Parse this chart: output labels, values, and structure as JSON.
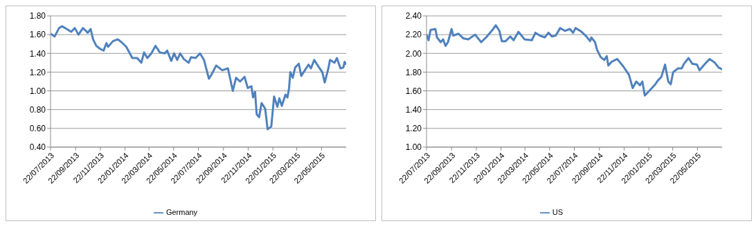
{
  "chart_data": [
    {
      "type": "line",
      "legend": "bottom",
      "grid": "y",
      "xlim": [
        "2013-07-22",
        "2015-07-22"
      ],
      "ylim": [
        0.4,
        1.8
      ],
      "yticks": [
        {
          "value": 0.4,
          "label": "0.40"
        },
        {
          "value": 0.6,
          "label": "0.60"
        },
        {
          "value": 0.8,
          "label": "0.80"
        },
        {
          "value": 1.0,
          "label": "1.00"
        },
        {
          "value": 1.2,
          "label": "1.20"
        },
        {
          "value": 1.4,
          "label": "1.40"
        },
        {
          "value": 1.6,
          "label": "1.60"
        },
        {
          "value": 1.8,
          "label": "1.80"
        }
      ],
      "xticks": [
        {
          "value": "2013-07-22",
          "label": "22/07/2013"
        },
        {
          "value": "2013-09-22",
          "label": "22/09/2013"
        },
        {
          "value": "2013-11-22",
          "label": "22/11/2013"
        },
        {
          "value": "2014-01-22",
          "label": "22/01/2014"
        },
        {
          "value": "2014-03-22",
          "label": "22/03/2014"
        },
        {
          "value": "2014-05-22",
          "label": "22/05/2014"
        },
        {
          "value": "2014-07-22",
          "label": "22/07/2014"
        },
        {
          "value": "2014-09-22",
          "label": "22/09/2014"
        },
        {
          "value": "2014-11-22",
          "label": "22/11/2014"
        },
        {
          "value": "2015-01-22",
          "label": "22/01/2015"
        },
        {
          "value": "2015-03-22",
          "label": "22/03/2015"
        },
        {
          "value": "2015-05-22",
          "label": "22/05/2015"
        }
      ],
      "x": [
        "2013-07-22",
        "2013-08-01",
        "2013-08-12",
        "2013-08-19",
        "2013-08-31",
        "2013-09-11",
        "2013-09-20",
        "2013-09-29",
        "2013-10-10",
        "2013-10-22",
        "2013-10-29",
        "2013-11-04",
        "2013-11-12",
        "2013-11-21",
        "2013-11-30",
        "2013-12-07",
        "2013-12-11",
        "2013-12-23",
        "2014-01-04",
        "2014-01-13",
        "2014-01-25",
        "2014-02-09",
        "2014-02-21",
        "2014-03-03",
        "2014-03-10",
        "2014-03-18",
        "2014-03-28",
        "2014-04-07",
        "2014-04-18",
        "2014-04-30",
        "2014-05-06",
        "2014-05-16",
        "2014-05-23",
        "2014-05-31",
        "2014-06-07",
        "2014-06-16",
        "2014-06-28",
        "2014-07-04",
        "2014-07-15",
        "2014-07-26",
        "2014-08-05",
        "2014-08-17",
        "2014-08-23",
        "2014-09-04",
        "2014-09-19",
        "2014-10-03",
        "2014-10-15",
        "2014-10-23",
        "2014-11-02",
        "2014-11-13",
        "2014-11-21",
        "2014-11-30",
        "2014-12-04",
        "2014-12-09",
        "2014-12-13",
        "2014-12-19",
        "2014-12-25",
        "2015-01-03",
        "2015-01-09",
        "2015-01-18",
        "2015-01-25",
        "2015-02-02",
        "2015-02-07",
        "2015-02-13",
        "2015-02-22",
        "2015-02-27",
        "2015-03-03",
        "2015-03-06",
        "2015-03-12",
        "2015-03-18",
        "2015-03-27",
        "2015-04-02",
        "2015-04-11",
        "2015-04-20",
        "2015-04-26",
        "2015-05-04",
        "2015-05-16",
        "2015-05-24",
        "2015-05-30",
        "2015-06-08",
        "2015-06-12",
        "2015-06-23",
        "2015-06-29",
        "2015-07-08",
        "2015-07-15",
        "2015-07-18",
        "2015-07-22"
      ],
      "series": [
        {
          "name": "Germany",
          "color": "#4f81bd",
          "values": [
            1.61,
            1.58,
            1.67,
            1.69,
            1.66,
            1.63,
            1.67,
            1.6,
            1.67,
            1.62,
            1.66,
            1.55,
            1.48,
            1.45,
            1.43,
            1.51,
            1.47,
            1.53,
            1.55,
            1.52,
            1.47,
            1.35,
            1.35,
            1.3,
            1.41,
            1.35,
            1.4,
            1.48,
            1.41,
            1.4,
            1.43,
            1.32,
            1.4,
            1.33,
            1.4,
            1.34,
            1.3,
            1.36,
            1.35,
            1.4,
            1.33,
            1.13,
            1.17,
            1.27,
            1.22,
            1.24,
            1.0,
            1.14,
            1.1,
            1.15,
            1.03,
            1.05,
            0.93,
            0.99,
            0.75,
            0.72,
            0.87,
            0.81,
            0.59,
            0.62,
            0.94,
            0.83,
            0.92,
            0.84,
            0.96,
            0.93,
            1.03,
            1.2,
            1.14,
            1.25,
            1.29,
            1.16,
            1.22,
            1.28,
            1.24,
            1.33,
            1.25,
            1.2,
            1.09,
            1.24,
            1.33,
            1.3,
            1.35,
            1.24,
            1.25,
            1.31,
            1.28
          ]
        }
      ]
    },
    {
      "type": "line",
      "legend": "bottom",
      "grid": "y",
      "xlim": [
        "2013-07-22",
        "2015-07-22"
      ],
      "ylim": [
        1.0,
        2.4
      ],
      "yticks": [
        {
          "value": 1.0,
          "label": "1.00"
        },
        {
          "value": 1.2,
          "label": "1.20"
        },
        {
          "value": 1.4,
          "label": "1.40"
        },
        {
          "value": 1.6,
          "label": "1.60"
        },
        {
          "value": 1.8,
          "label": "1.80"
        },
        {
          "value": 2.0,
          "label": "2.00"
        },
        {
          "value": 2.2,
          "label": "2.20"
        },
        {
          "value": 2.4,
          "label": "2.40"
        }
      ],
      "xticks": [
        {
          "value": "2013-07-22",
          "label": "22/07/2013"
        },
        {
          "value": "2013-09-22",
          "label": "22/09/2013"
        },
        {
          "value": "2013-11-22",
          "label": "22/11/2013"
        },
        {
          "value": "2014-01-22",
          "label": "22/01/2014"
        },
        {
          "value": "2014-03-22",
          "label": "22/03/2014"
        },
        {
          "value": "2014-05-22",
          "label": "22/05/2014"
        },
        {
          "value": "2014-07-22",
          "label": "22/07/2014"
        },
        {
          "value": "2014-09-22",
          "label": "22/09/2014"
        },
        {
          "value": "2014-11-22",
          "label": "22/11/2014"
        },
        {
          "value": "2015-01-22",
          "label": "22/01/2015"
        },
        {
          "value": "2015-03-22",
          "label": "22/03/2015"
        },
        {
          "value": "2015-05-22",
          "label": "22/05/2015"
        }
      ],
      "x": [
        "2013-07-22",
        "2013-07-27",
        "2013-08-01",
        "2013-08-13",
        "2013-08-17",
        "2013-08-26",
        "2013-09-01",
        "2013-09-07",
        "2013-09-13",
        "2013-09-22",
        "2013-09-26",
        "2013-10-09",
        "2013-10-21",
        "2013-11-02",
        "2013-11-19",
        "2013-12-04",
        "2013-12-16",
        "2014-01-01",
        "2014-01-09",
        "2014-01-18",
        "2014-01-24",
        "2014-02-02",
        "2014-02-14",
        "2014-02-22",
        "2014-03-06",
        "2014-03-21",
        "2014-04-08",
        "2014-04-17",
        "2014-04-28",
        "2014-05-10",
        "2014-05-19",
        "2014-05-28",
        "2014-06-06",
        "2014-06-17",
        "2014-06-29",
        "2014-07-11",
        "2014-07-19",
        "2014-07-25",
        "2014-08-09",
        "2014-08-21",
        "2014-08-30",
        "2014-09-02",
        "2014-09-11",
        "2014-09-16",
        "2014-09-25",
        "2014-10-04",
        "2014-10-10",
        "2014-10-14",
        "2014-10-22",
        "2014-11-05",
        "2014-11-20",
        "2014-12-04",
        "2014-12-13",
        "2014-12-22",
        "2014-12-31",
        "2015-01-06",
        "2015-01-12",
        "2015-01-23",
        "2015-02-07",
        "2015-02-13",
        "2015-02-22",
        "2015-03-03",
        "2015-03-11",
        "2015-03-17",
        "2015-03-23",
        "2015-04-04",
        "2015-04-13",
        "2015-04-19",
        "2015-04-30",
        "2015-05-09",
        "2015-05-21",
        "2015-05-27",
        "2015-06-08",
        "2015-06-21",
        "2015-07-04",
        "2015-07-13",
        "2015-07-22"
      ],
      "series": [
        {
          "name": "US",
          "color": "#4f81bd",
          "values": [
            2.2,
            2.14,
            2.25,
            2.26,
            2.17,
            2.12,
            2.15,
            2.08,
            2.12,
            2.26,
            2.19,
            2.21,
            2.16,
            2.15,
            2.2,
            2.12,
            2.17,
            2.25,
            2.3,
            2.24,
            2.13,
            2.13,
            2.18,
            2.14,
            2.23,
            2.15,
            2.14,
            2.22,
            2.19,
            2.17,
            2.22,
            2.18,
            2.19,
            2.27,
            2.24,
            2.26,
            2.22,
            2.27,
            2.23,
            2.18,
            2.13,
            2.17,
            2.12,
            2.04,
            1.96,
            1.93,
            1.97,
            1.87,
            1.91,
            1.94,
            1.86,
            1.77,
            1.63,
            1.7,
            1.66,
            1.7,
            1.55,
            1.6,
            1.67,
            1.71,
            1.75,
            1.88,
            1.7,
            1.67,
            1.8,
            1.84,
            1.84,
            1.89,
            1.95,
            1.89,
            1.88,
            1.82,
            1.88,
            1.94,
            1.9,
            1.85,
            1.83
          ]
        }
      ]
    }
  ]
}
